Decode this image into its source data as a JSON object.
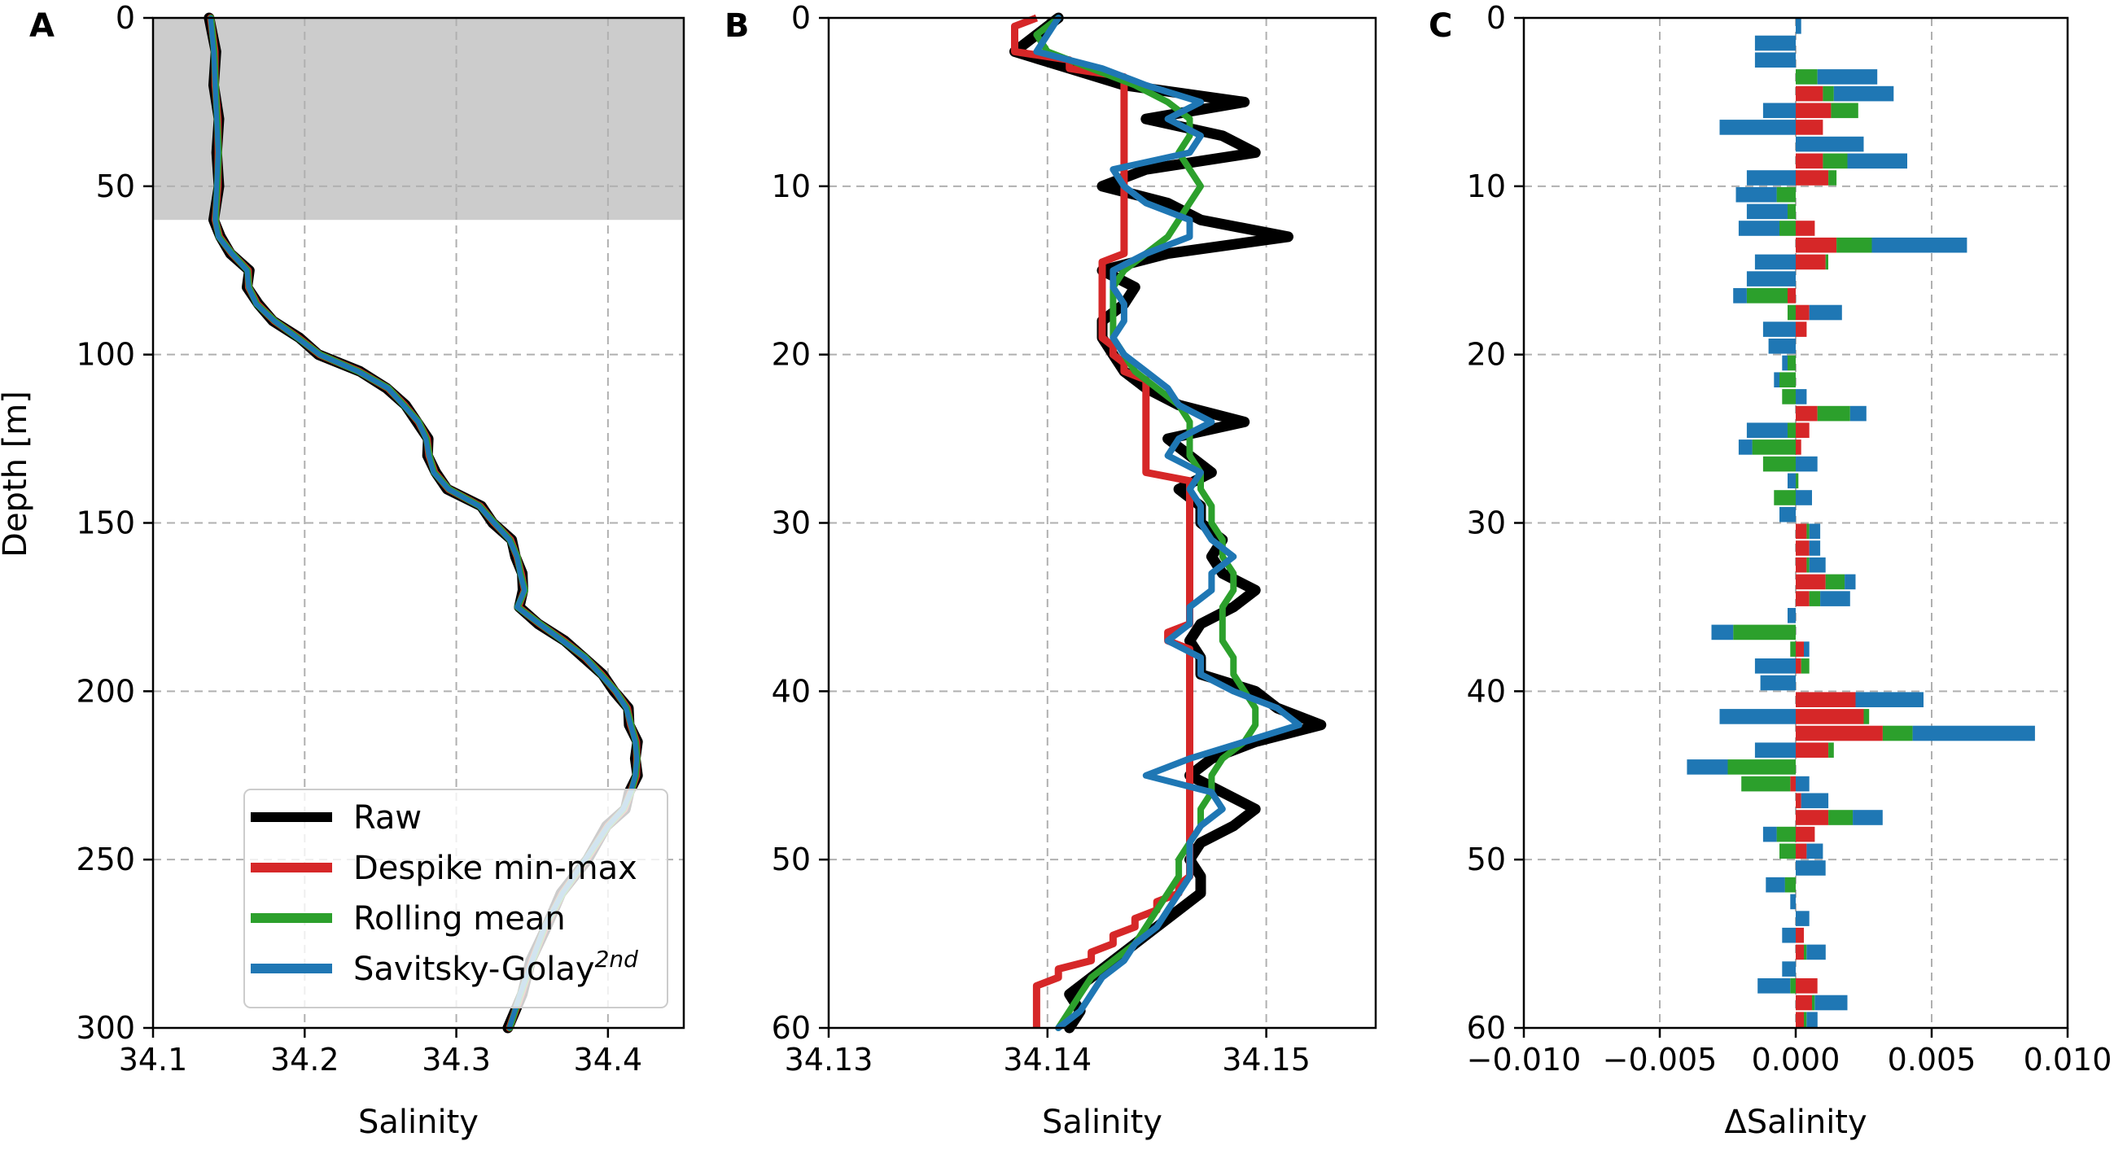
{
  "chart_data": [
    {
      "panel": "A",
      "type": "line",
      "xlabel": "Salinity",
      "ylabel": "Depth [m]",
      "xlim": [
        34.1,
        34.45
      ],
      "ylim": [
        300,
        0
      ],
      "xticks": [
        34.1,
        34.2,
        34.3,
        34.4
      ],
      "xtick_labels": [
        "34.1",
        "34.2",
        "34.3",
        "34.4"
      ],
      "yticks": [
        0,
        50,
        100,
        150,
        200,
        250,
        300
      ],
      "ytick_labels": [
        "0",
        "50",
        "100",
        "150",
        "200",
        "250",
        "300"
      ],
      "grid": true,
      "shaded_depth_range": [
        0,
        60
      ],
      "profile": {
        "depth": [
          0,
          10,
          20,
          30,
          40,
          50,
          60,
          65,
          70,
          75,
          80,
          85,
          90,
          95,
          100,
          105,
          110,
          115,
          120,
          125,
          130,
          135,
          140,
          145,
          150,
          155,
          160,
          165,
          170,
          175,
          180,
          185,
          190,
          195,
          200,
          205,
          210,
          215,
          220,
          225,
          230,
          235,
          240,
          250,
          260,
          270,
          280,
          290,
          300
        ],
        "salinity": [
          34.138,
          34.14,
          34.141,
          34.142,
          34.143,
          34.142,
          34.141,
          34.143,
          34.152,
          34.162,
          34.163,
          34.168,
          34.18,
          34.195,
          34.21,
          34.235,
          34.255,
          34.265,
          34.275,
          34.28,
          34.282,
          34.285,
          34.295,
          34.315,
          34.325,
          34.335,
          34.34,
          34.342,
          34.345,
          34.34,
          34.355,
          34.37,
          34.385,
          34.395,
          34.405,
          34.412,
          34.415,
          34.418,
          34.419,
          34.418,
          34.415,
          34.41,
          34.4,
          34.385,
          34.37,
          34.358,
          34.35,
          34.342,
          34.335
        ]
      },
      "series": [
        {
          "name": "Raw",
          "color": "#000000"
        },
        {
          "name": "Despike min-max",
          "color": "#d62728"
        },
        {
          "name": "Rolling mean",
          "color": "#2ca02c"
        },
        {
          "name": "Savitsky-Golay",
          "superscript": "2nd",
          "color": "#1f77b4"
        }
      ],
      "legend_position": "lower-right"
    },
    {
      "panel": "B",
      "type": "line",
      "xlabel": "Salinity",
      "xlim": [
        34.13,
        34.155
      ],
      "ylim": [
        60,
        0
      ],
      "xticks": [
        34.13,
        34.14,
        34.15
      ],
      "xtick_labels": [
        "34.13",
        "34.14",
        "34.15"
      ],
      "yticks": [
        0,
        10,
        20,
        30,
        40,
        50,
        60
      ],
      "ytick_labels": [
        "0",
        "10",
        "20",
        "30",
        "40",
        "50",
        "60"
      ],
      "grid": true,
      "depth": [
        0,
        1,
        2,
        3,
        4,
        5,
        6,
        7,
        8,
        9,
        10,
        11,
        12,
        13,
        14,
        15,
        16,
        17,
        18,
        19,
        20,
        21,
        22,
        23,
        24,
        25,
        26,
        27,
        28,
        29,
        30,
        31,
        32,
        33,
        34,
        35,
        36,
        37,
        38,
        39,
        40,
        41,
        42,
        43,
        44,
        45,
        46,
        47,
        48,
        49,
        50,
        51,
        52,
        53,
        54,
        55,
        56,
        57,
        58,
        59,
        60
      ],
      "series": [
        {
          "name": "Raw",
          "color": "#000000",
          "values": [
            34.1405,
            34.1395,
            34.1385,
            34.141,
            34.1435,
            34.149,
            34.1445,
            34.148,
            34.1495,
            34.1445,
            34.1425,
            34.1455,
            34.147,
            34.151,
            34.1455,
            34.1425,
            34.144,
            34.1435,
            34.1425,
            34.1425,
            34.143,
            34.1435,
            34.1445,
            34.146,
            34.149,
            34.1455,
            34.1465,
            34.1475,
            34.146,
            34.147,
            34.147,
            34.148,
            34.1475,
            34.148,
            34.1495,
            34.1485,
            34.147,
            34.1465,
            34.147,
            34.147,
            34.1495,
            34.1505,
            34.1525,
            34.1495,
            34.1475,
            34.1465,
            34.148,
            34.1495,
            34.1485,
            34.147,
            34.1465,
            34.147,
            34.147,
            34.146,
            34.145,
            34.144,
            34.143,
            34.142,
            34.141,
            34.1415,
            34.141
          ]
        },
        {
          "name": "Despike min-max",
          "color": "#d62728",
          "values": [
            34.1395,
            34.1385,
            34.1385,
            34.141,
            34.1435,
            34.1435,
            34.1435,
            34.1435,
            34.1435,
            34.1435,
            34.1435,
            34.1435,
            34.1435,
            34.1435,
            34.1435,
            34.1425,
            34.1425,
            34.1425,
            34.1425,
            34.1425,
            34.143,
            34.1435,
            34.1445,
            34.1445,
            34.1445,
            34.1445,
            34.1445,
            34.1445,
            34.1465,
            34.1465,
            34.1465,
            34.1465,
            34.1465,
            34.1465,
            34.1465,
            34.1465,
            34.1465,
            34.1455,
            34.1465,
            34.1465,
            34.1465,
            34.1465,
            34.1465,
            34.1465,
            34.1465,
            34.1465,
            34.1465,
            34.1465,
            34.1465,
            34.1465,
            34.1465,
            34.1465,
            34.146,
            34.145,
            34.144,
            34.143,
            34.142,
            34.1405,
            34.1395,
            34.1395,
            34.1395
          ]
        },
        {
          "name": "Rolling mean",
          "color": "#2ca02c",
          "values": [
            34.1405,
            34.1395,
            34.14,
            34.142,
            34.144,
            34.1455,
            34.1465,
            34.1465,
            34.146,
            34.1465,
            34.147,
            34.1465,
            34.146,
            34.1455,
            34.1445,
            34.1435,
            34.143,
            34.143,
            34.143,
            34.143,
            34.1435,
            34.144,
            34.145,
            34.146,
            34.1465,
            34.1465,
            34.1465,
            34.147,
            34.147,
            34.1475,
            34.1475,
            34.148,
            34.148,
            34.1485,
            34.1485,
            34.148,
            34.148,
            34.148,
            34.1485,
            34.1485,
            34.149,
            34.1495,
            34.1495,
            34.149,
            34.148,
            34.1475,
            34.1475,
            34.147,
            34.147,
            34.1465,
            34.146,
            34.146,
            34.1455,
            34.145,
            34.1445,
            34.144,
            34.143,
            34.142,
            34.1415,
            34.141,
            34.1405
          ]
        },
        {
          "name": "Savitsky-Golay",
          "superscript": "2nd",
          "color": "#1f77b4",
          "values": [
            34.1405,
            34.14,
            34.1395,
            34.1425,
            34.1445,
            34.147,
            34.1455,
            34.147,
            34.1465,
            34.143,
            34.1435,
            34.1445,
            34.1465,
            34.1465,
            34.1445,
            34.143,
            34.143,
            34.1435,
            34.1435,
            34.143,
            34.1435,
            34.1445,
            34.1455,
            34.146,
            34.1475,
            34.146,
            34.1455,
            34.147,
            34.1465,
            34.147,
            34.147,
            34.1475,
            34.1485,
            34.1475,
            34.1475,
            34.1465,
            34.1465,
            34.1455,
            34.147,
            34.147,
            34.1485,
            34.1505,
            34.1515,
            34.149,
            34.1465,
            34.1445,
            34.1475,
            34.148,
            34.147,
            34.1465,
            34.1465,
            34.1465,
            34.146,
            34.1455,
            34.145,
            34.144,
            34.1435,
            34.1425,
            34.142,
            34.1415,
            34.1405
          ]
        }
      ]
    },
    {
      "panel": "C",
      "type": "bar",
      "orientation": "horizontal",
      "stacked": true,
      "xlabel": "ΔSalinity",
      "xlim": [
        -0.01,
        0.01
      ],
      "ylim": [
        60,
        0
      ],
      "xticks": [
        -0.01,
        -0.005,
        0.0,
        0.005,
        0.01
      ],
      "xtick_labels": [
        "−0.010",
        "−0.005",
        "0.000",
        "0.005",
        "0.010"
      ],
      "yticks": [
        0,
        10,
        20,
        30,
        40,
        50,
        60
      ],
      "ytick_labels": [
        "0",
        "10",
        "20",
        "30",
        "40",
        "50",
        "60"
      ],
      "grid": true,
      "depth": [
        0,
        1,
        2,
        3,
        4,
        5,
        6,
        7,
        8,
        9,
        10,
        11,
        12,
        13,
        14,
        15,
        16,
        17,
        18,
        19,
        20,
        21,
        22,
        23,
        24,
        25,
        26,
        27,
        28,
        29,
        30,
        31,
        32,
        33,
        34,
        35,
        36,
        37,
        38,
        39,
        40,
        41,
        42,
        43,
        44,
        45,
        46,
        47,
        48,
        49,
        50,
        51,
        52,
        53,
        54,
        55,
        56,
        57,
        58,
        59
      ],
      "series": [
        {
          "name": "Despike min-max",
          "color": "#d62728",
          "values": [
            0,
            0,
            0,
            0,
            0.001,
            0.0013,
            0.001,
            0,
            0.001,
            0.0012,
            0,
            0,
            0.0007,
            0.0015,
            0.0011,
            0,
            -0.0003,
            0.0005,
            0.0004,
            0,
            0,
            0,
            0,
            0.0008,
            0.0005,
            0.0002,
            0,
            0,
            0,
            0,
            0.0004,
            0.0005,
            0.0004,
            0.0011,
            0.0005,
            0,
            0,
            0.0003,
            0.0002,
            0,
            0.0022,
            0.0025,
            0.0032,
            0.0012,
            0,
            -0.0002,
            0.0002,
            0.0012,
            0.0007,
            0.0004,
            0,
            0,
            0,
            0,
            0.0003,
            0.0003,
            0,
            0.0008,
            0.0006,
            0.0003
          ]
        },
        {
          "name": "Rolling mean",
          "color": "#2ca02c",
          "values": [
            0,
            0,
            0,
            0.0008,
            0.0004,
            0.001,
            0,
            0,
            0.0009,
            0.0003,
            -0.0007,
            -0.0003,
            -0.0006,
            0.0013,
            0.0001,
            0,
            -0.0015,
            -0.0003,
            0,
            0,
            -0.0003,
            -0.0006,
            -0.0005,
            0.0012,
            -0.0003,
            -0.0016,
            -0.0012,
            0.0001,
            -0.0008,
            0,
            0.0001,
            0,
            0.0001,
            0.0007,
            0.0004,
            0,
            -0.0023,
            -0.0002,
            0.0003,
            0,
            0,
            0.0002,
            0.0011,
            0.0002,
            -0.0025,
            -0.0018,
            0,
            0.0009,
            -0.0007,
            -0.0006,
            0,
            -0.0004,
            0,
            0,
            0,
            0.0001,
            0,
            -0.0002,
            0.0001,
            0.0001
          ]
        },
        {
          "name": "Savitsky-Golay",
          "superscript": "2nd",
          "color": "#1f77b4",
          "values": [
            0.0002,
            -0.0015,
            -0.0015,
            0.0022,
            0.0022,
            -0.0012,
            -0.0028,
            0.0025,
            0.0022,
            -0.0018,
            -0.0015,
            -0.0015,
            -0.0015,
            0.0035,
            -0.0015,
            -0.0018,
            -0.0005,
            0.0012,
            -0.0012,
            -0.001,
            -0.0002,
            -0.0002,
            0.0004,
            0.0006,
            -0.0015,
            -0.0005,
            0.0008,
            -0.0003,
            0.0006,
            -0.0006,
            0.0004,
            0.0004,
            0.0006,
            0.0004,
            0.0011,
            -0.0003,
            -0.0008,
            0.0002,
            -0.0015,
            -0.0013,
            0.0025,
            -0.0028,
            0.0045,
            -0.0015,
            -0.0015,
            0.0005,
            0.001,
            0.0011,
            -0.0005,
            0.0006,
            0.0011,
            -0.0007,
            -0.0002,
            0.0005,
            -0.0005,
            0.0007,
            -0.0005,
            -0.0012,
            0.0012,
            0.0004
          ]
        }
      ]
    }
  ],
  "panel_letters": [
    "A",
    "B",
    "C"
  ]
}
